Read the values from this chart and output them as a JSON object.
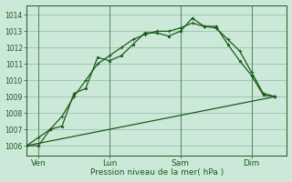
{
  "background_color": "#cce8d8",
  "grid_color": "#99c4aa",
  "line_color": "#1a5c1a",
  "ylabel_ticks": [
    1006,
    1007,
    1008,
    1009,
    1010,
    1011,
    1012,
    1013,
    1014
  ],
  "xlabel": "Pression niveau de la mer( hPa )",
  "x_tick_labels": [
    "Ven",
    "Lun",
    "Sam",
    "Dim"
  ],
  "x_tick_positions": [
    1,
    7,
    13,
    19
  ],
  "ylim": [
    1005.4,
    1014.6
  ],
  "xlim": [
    0,
    22
  ],
  "series1_x": [
    0,
    1,
    2,
    3,
    4,
    5,
    6,
    7,
    8,
    9,
    10,
    11,
    12,
    13,
    14,
    15,
    16,
    17,
    18,
    19,
    20,
    21
  ],
  "series1_y": [
    1006.0,
    1006.0,
    1007.0,
    1007.2,
    1009.2,
    1009.5,
    1011.4,
    1011.2,
    1011.5,
    1012.2,
    1012.9,
    1012.9,
    1012.7,
    1013.0,
    1013.8,
    1013.3,
    1013.3,
    1012.2,
    1011.2,
    1010.3,
    1009.1,
    1009.0
  ],
  "series2_x": [
    0,
    1,
    2,
    3,
    4,
    5,
    6,
    7,
    8,
    9,
    10,
    11,
    12,
    13,
    14,
    15,
    16,
    17,
    18,
    19,
    20,
    21
  ],
  "series2_y": [
    1006.0,
    1006.5,
    1007.0,
    1007.8,
    1009.0,
    1010.0,
    1011.0,
    1011.5,
    1012.0,
    1012.5,
    1012.8,
    1013.0,
    1013.0,
    1013.2,
    1013.5,
    1013.3,
    1013.2,
    1012.5,
    1011.8,
    1010.5,
    1009.2,
    1009.0
  ],
  "series3_x": [
    0,
    21
  ],
  "series3_y": [
    1006.0,
    1009.0
  ],
  "vline_positions": [
    1,
    7,
    13,
    19
  ],
  "figsize": [
    3.2,
    2.0
  ],
  "dpi": 100
}
